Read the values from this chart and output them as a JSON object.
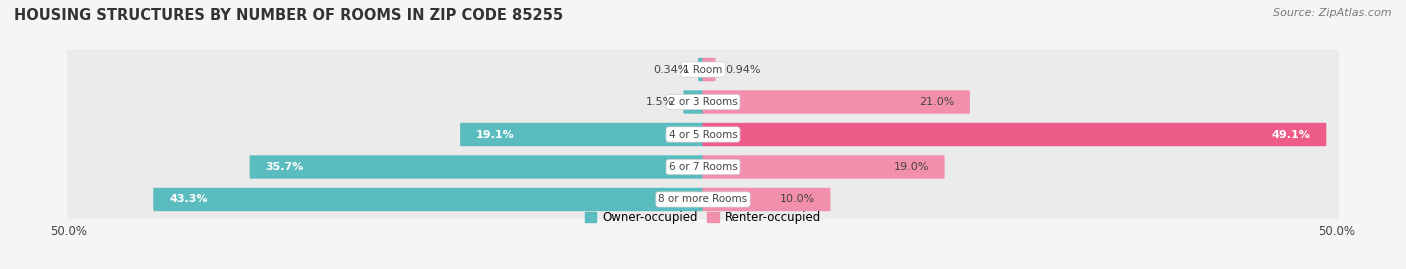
{
  "title": "HOUSING STRUCTURES BY NUMBER OF ROOMS IN ZIP CODE 85255",
  "source": "Source: ZipAtlas.com",
  "categories": [
    "1 Room",
    "2 or 3 Rooms",
    "4 or 5 Rooms",
    "6 or 7 Rooms",
    "8 or more Rooms"
  ],
  "owner_values": [
    0.34,
    1.5,
    19.1,
    35.7,
    43.3
  ],
  "renter_values": [
    0.94,
    21.0,
    49.1,
    19.0,
    10.0
  ],
  "owner_color": "#5bbcbf",
  "renter_color": "#f28fac",
  "renter_color_large": "#ee5c8a",
  "max_val": 50.0,
  "bar_height": 0.62,
  "background_color": "#f5f5f5",
  "bar_bg_color": "#e8e8e8",
  "row_bg_color": "#ebebeb",
  "label_color": "#444444",
  "white_label_color": "#ffffff",
  "title_fontsize": 10.5,
  "source_fontsize": 8,
  "tick_label_fontsize": 8.5,
  "bar_label_fontsize": 8,
  "category_fontsize": 7.5,
  "legend_fontsize": 8.5
}
